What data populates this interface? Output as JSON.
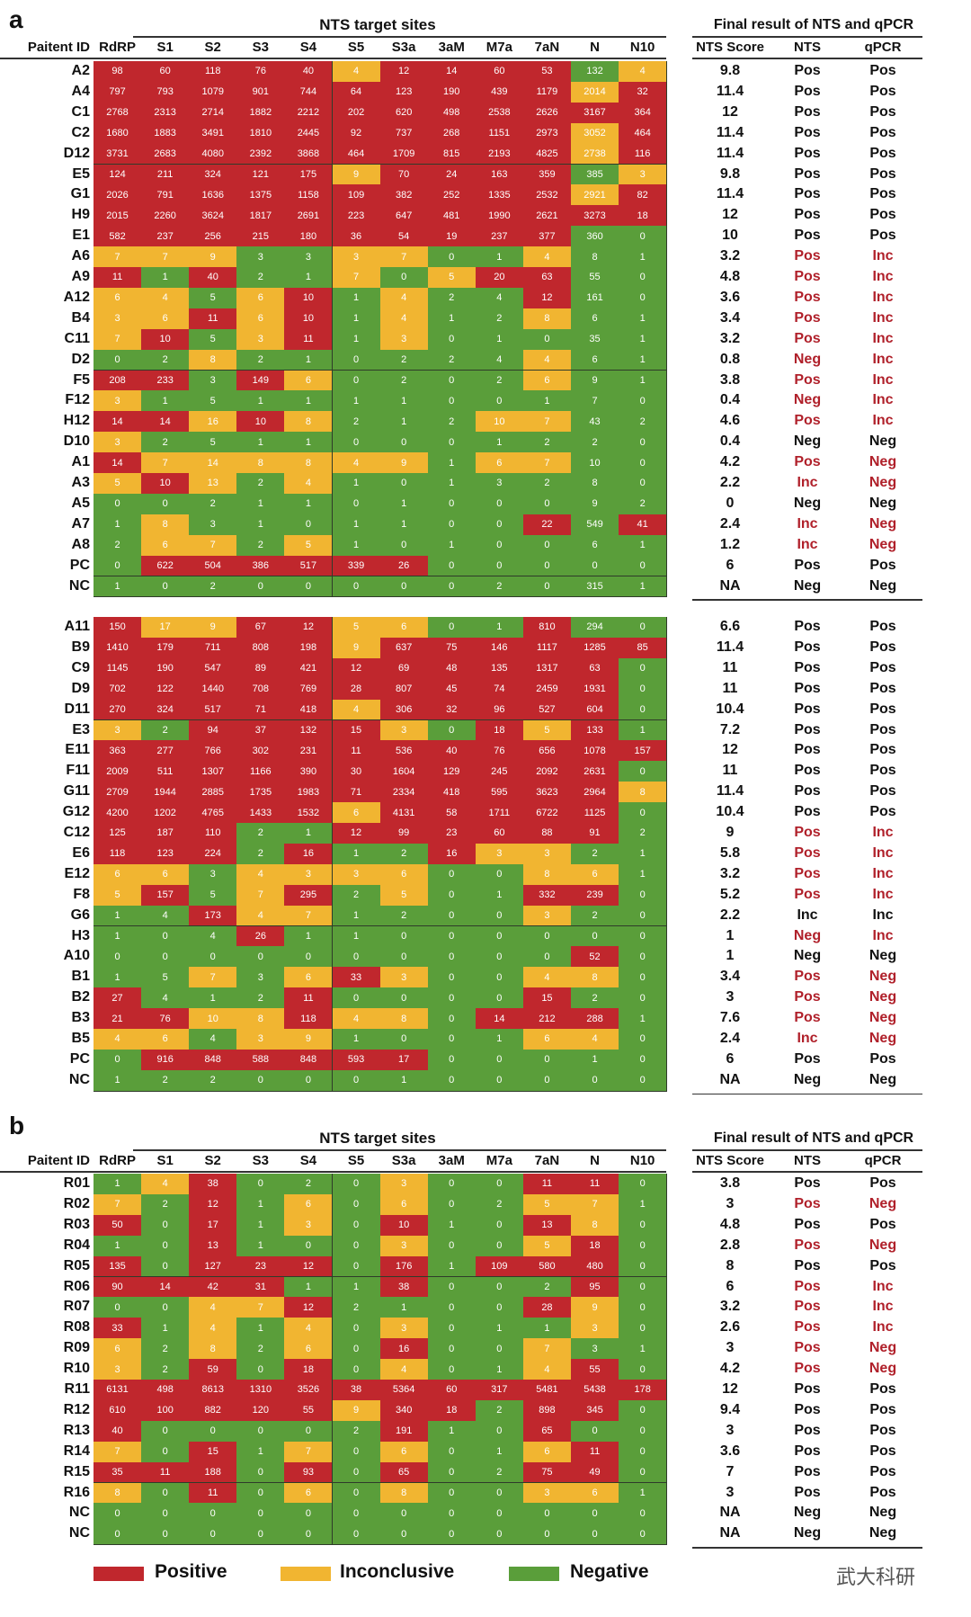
{
  "panel_a_label": "a",
  "panel_b_label": "b",
  "nts_title": "NTS target sites",
  "final_title": "Final result of NTS and qPCR",
  "col_id": "Paitent ID",
  "columns": [
    "RdRP",
    "S1",
    "S2",
    "S3",
    "S4",
    "S5",
    "S3a",
    "3aM",
    "M7a",
    "7aN",
    "N",
    "N10"
  ],
  "result_cols": [
    "NTS Score",
    "NTS",
    "qPCR"
  ],
  "colors": {
    "positive": "#c0272d",
    "inconclusive": "#f1b531",
    "negative": "#5a9e3a",
    "result_red": "#b0202a"
  },
  "legend": {
    "positive": "Positive",
    "inconclusive": "Inconclusive",
    "negative": "Negative"
  },
  "watermark": "武大科研",
  "block1": [
    [
      "A2",
      "98r 60r 118r 76r 40r 4y 12r 14r 60r 53r 132g 4y",
      "9.8",
      "Pos",
      "Pos"
    ],
    [
      "A4",
      "797r 793r 1079r 901r 744r 64r 123r 190r 439r 1179r 2014y 32r",
      "11.4",
      "Pos",
      "Pos"
    ],
    [
      "C1",
      "2768r 2313r 2714r 1882r 2212r 202r 620r 498r 2538r 2626r 3167r 364r",
      "12",
      "Pos",
      "Pos"
    ],
    [
      "C2",
      "1680r 1883r 3491r 1810r 2445r 92r 737r 268r 1151r 2973r 3052y 464r",
      "11.4",
      "Pos",
      "Pos"
    ],
    [
      "D12",
      "3731r 2683r 4080r 2392r 3868r 464r 1709r 815r 2193r 4825r 2738y 116r",
      "11.4",
      "Pos",
      "Pos"
    ],
    [
      "E5",
      "124r 211r 324r 121r 175r 9y 70r 24r 163r 359r 385g 3y",
      "9.8",
      "Pos",
      "Pos"
    ],
    [
      "G1",
      "2026r 791r 1636r 1375r 1158r 109r 382r 252r 1335r 2532r 2921y 82r",
      "11.4",
      "Pos",
      "Pos"
    ],
    [
      "H9",
      "2015r 2260r 3624r 1817r 2691r 223r 647r 481r 1990r 2621r 3273r 18r",
      "12",
      "Pos",
      "Pos"
    ],
    [
      "E1",
      "582r 237r 256r 215r 180r 36r 54r 19r 237r 377r 360g 0g",
      "10",
      "Pos",
      "Pos"
    ],
    [
      "A6",
      "7y 7y 9y 3g 3g 3y 7y 0g 1g 4y 8g 1g",
      "3.2",
      "Pos*",
      "Inc*"
    ],
    [
      "A9",
      "11r 1g 40r 2g 1g 7y 0g 5y 20r 63r 55g 0g",
      "4.8",
      "Pos*",
      "Inc*"
    ],
    [
      "A12",
      "6y 4y 5g 6y 10r 1g 4y 2g 4g 12r 161g 0g",
      "3.6",
      "Pos*",
      "Inc*"
    ],
    [
      "B4",
      "3y 6y 11r 6y 10r 1g 4y 1g 2g 8y 6g 1g",
      "3.4",
      "Pos*",
      "Inc*"
    ],
    [
      "C11",
      "7y 10r 5g 3y 11r 1g 3y 0g 1g 0g 35g 1g",
      "3.2",
      "Pos*",
      "Inc*"
    ],
    [
      "D2",
      "0g 2g 8y 2g 1g 0g 2g 2g 4g 4y 6g 1g",
      "0.8",
      "Neg*",
      "Inc*"
    ],
    [
      "F5",
      "208r 233r 3g 149r 6y 0g 2g 0g 2g 6y 9g 1g",
      "3.8",
      "Pos*",
      "Inc*"
    ],
    [
      "F12",
      "3y 1g 5g 1g 1g 1g 1g 0g 0g 1g 7g 0g",
      "0.4",
      "Neg*",
      "Inc*"
    ],
    [
      "H12",
      "14r 14r 16y 10r 8y 2g 1g 2g 10y 7y 43g 2g",
      "4.6",
      "Pos*",
      "Inc*"
    ],
    [
      "D10",
      "3y 2g 5g 1g 1g 0g 0g 0g 1g 2g 2g 0g",
      "0.4",
      "Neg",
      "Neg"
    ],
    [
      "A1",
      "14r 7y 14y 8y 8y 4y 9y 1g 6y 7y 10g 0g",
      "4.2",
      "Pos*",
      "Neg*"
    ],
    [
      "A3",
      "5y 10r 13y 2g 4y 1g 0g 1g 3g 2g 8g 0g",
      "2.2",
      "Inc*",
      "Neg*"
    ],
    [
      "A5",
      "0g 0g 2g 1g 1g 0g 1g 0g 0g 0g 9g 2g",
      "0",
      "Neg",
      "Neg"
    ],
    [
      "A7",
      "1g 8y 3g 1g 0g 1g 1g 0g 0g 22r 549g 41r",
      "2.4",
      "Inc*",
      "Neg*"
    ],
    [
      "A8",
      "2g 6y 7y 2g 5y 1g 0g 1g 0g 0g 6g 1g",
      "1.2",
      "Inc*",
      "Neg*"
    ],
    [
      "PC",
      "0g 622r 504r 386r 517r 339r 26r 0g 0g 0g 0g 0g",
      "6",
      "Pos",
      "Pos"
    ],
    [
      "NC",
      "1g 0g 2g 0g 0g 0g 0g 0g 2g 0g 315g 1g",
      "NA",
      "Neg",
      "Neg"
    ]
  ],
  "block2": [
    [
      "A11",
      "150r 17y 9y 67r 12r 5y 6y 0g 1g 810r 294g 0g",
      "6.6",
      "Pos",
      "Pos"
    ],
    [
      "B9",
      "1410r 179r 711r 808r 198r 9y 637r 75r 146r 1117r 1285r 85r",
      "11.4",
      "Pos",
      "Pos"
    ],
    [
      "C9",
      "1145r 190r 547r 89r 421r 12r 69r 48r 135r 1317r 63r 0g",
      "11",
      "Pos",
      "Pos"
    ],
    [
      "D9",
      "702r 122r 1440r 708r 769r 28r 807r 45r 74r 2459r 1931r 0g",
      "11",
      "Pos",
      "Pos"
    ],
    [
      "D11",
      "270r 324r 517r 71r 418r 4y 306r 32r 96r 527r 604r 0g",
      "10.4",
      "Pos",
      "Pos"
    ],
    [
      "E3",
      "3y 2g 94r 37r 132r 15r 3y 0g 18r 5y 133r 1g",
      "7.2",
      "Pos",
      "Pos"
    ],
    [
      "E11",
      "363r 277r 766r 302r 231r 11r 536r 40r 76r 656r 1078r 157r",
      "12",
      "Pos",
      "Pos"
    ],
    [
      "F11",
      "2009r 511r 1307r 1166r 390r 30r 1604r 129r 245r 2092r 2631r 0g",
      "11",
      "Pos",
      "Pos"
    ],
    [
      "G11",
      "2709r 1944r 2885r 1735r 1983r 71r 2334r 418r 595r 3623r 2964r 8y",
      "11.4",
      "Pos",
      "Pos"
    ],
    [
      "G12",
      "4200r 1202r 4765r 1433r 1532r 6y 4131r 58r 1711r 6722r 1125r 0g",
      "10.4",
      "Pos",
      "Pos"
    ],
    [
      "C12",
      "125r 187r 110r 2g 1g 12r 99r 23r 60r 88r 91r 2g",
      "9",
      "Pos*",
      "Inc*"
    ],
    [
      "E6",
      "118r 123r 224r 2g 16r 1g 2g 16r 3y 3y 2g 1g",
      "5.8",
      "Pos*",
      "Inc*"
    ],
    [
      "E12",
      "6y 6y 3g 4y 3y 3y 6y 0g 0g 8y 6y 1g",
      "3.2",
      "Pos*",
      "Inc*"
    ],
    [
      "F8",
      "5y 157r 5g 7y 295r 2g 5y 0g 1g 332r 239r 0g",
      "5.2",
      "Pos*",
      "Inc*"
    ],
    [
      "G6",
      "1g 4g 173r 4y 7y 1g 2g 0g 0g 3y 2g 0g",
      "2.2",
      "Inc",
      "Inc"
    ],
    [
      "H3",
      "1g 0g 4g 26r 1g 1g 0g 0g 0g 0g 0g 0g",
      "1",
      "Neg*",
      "Inc*"
    ],
    [
      "A10",
      "0g 0g 0g 0g 0g 0g 0g 0g 0g 0g 52r 0g",
      "1",
      "Neg",
      "Neg"
    ],
    [
      "B1",
      "1g 5g 7y 3g 6y 33r 3y 0g 0g 4y 8y 0g",
      "3.4",
      "Pos*",
      "Neg*"
    ],
    [
      "B2",
      "27r 4g 1g 2g 11r 0g 0g 0g 0g 15r 2g 0g",
      "3",
      "Pos*",
      "Neg*"
    ],
    [
      "B3",
      "21r 76r 10y 8y 118r 4y 8y 0g 14r 212r 288r 1g",
      "7.6",
      "Pos*",
      "Neg*"
    ],
    [
      "B5",
      "4y 6y 4g 3y 9y 1g 0g 0g 1g 6y 4y 0g",
      "2.4",
      "Inc*",
      "Neg*"
    ],
    [
      "PC",
      "0g 916r 848r 588r 848r 593r 17r 0g 0g 0g 1g 0g",
      "6",
      "Pos",
      "Pos"
    ],
    [
      "NC",
      "1g 2g 2g 0g 0g 0g 1g 0g 0g 0g 0g 0g",
      "NA",
      "Neg",
      "Neg"
    ]
  ],
  "block3": [
    [
      "R01",
      "1g 4y 38r 0g 2g 0g 3y 0g 0g 11r 11r 0g",
      "3.8",
      "Pos",
      "Pos"
    ],
    [
      "R02",
      "7y 2g 12r 1g 6y 0g 6y 0g 2g 5y 7y 1g",
      "3",
      "Pos*",
      "Neg*"
    ],
    [
      "R03",
      "50r 0g 17r 1g 3y 0g 10r 1g 0g 13r 8y 0g",
      "4.8",
      "Pos",
      "Pos"
    ],
    [
      "R04",
      "1g 0g 13r 1g 0g 0g 3y 0g 0g 5y 18r 0g",
      "2.8",
      "Pos*",
      "Neg*"
    ],
    [
      "R05",
      "135r 0g 127r 23r 12r 0g 176r 1g 109r 580r 480r 0g",
      "8",
      "Pos",
      "Pos"
    ],
    [
      "R06",
      "90r 14r 42r 31r 1g 1g 38r 0g 0g 2g 95r 0g",
      "6",
      "Pos*",
      "Inc*"
    ],
    [
      "R07",
      "0g 0g 4y 7y 12r 2g 1g 0g 0g 28r 9y 0g",
      "3.2",
      "Pos*",
      "Inc*"
    ],
    [
      "R08",
      "33r 1g 4y 1g 4y 0g 3y 0g 1g 1g 3y 0g",
      "2.6",
      "Pos*",
      "Inc*"
    ],
    [
      "R09",
      "6y 2g 8y 2g 6y 0g 16r 0g 0g 7y 3g 1g",
      "3",
      "Pos*",
      "Neg*"
    ],
    [
      "R10",
      "3y 2g 59r 0g 18r 0g 4y 0g 1g 4y 55r 0g",
      "4.2",
      "Pos*",
      "Neg*"
    ],
    [
      "R11",
      "6131r 498r 8613r 1310r 3526r 38r 5364r 60r 317r 5481r 5438r 178r",
      "12",
      "Pos",
      "Pos"
    ],
    [
      "R12",
      "610r 100r 882r 120r 55r 9y 340r 18r 2g 898r 345r 0g",
      "9.4",
      "Pos",
      "Pos"
    ],
    [
      "R13",
      "40r 0g 0g 0g 0g 2g 191r 1g 0g 65r 0g 0g",
      "3",
      "Pos",
      "Pos"
    ],
    [
      "R14",
      "7y 0g 15r 1g 7y 0g 6y 0g 1g 6y 11r 0g",
      "3.6",
      "Pos",
      "Pos"
    ],
    [
      "R15",
      "35r 11r 188r 0g 93r 0g 65r 0g 2g 75r 49r 0g",
      "7",
      "Pos",
      "Pos"
    ],
    [
      "R16",
      "8y 0g 11r 0g 6y 0g 8y 0g 0g 3y 6y 1g",
      "3",
      "Pos",
      "Pos"
    ],
    [
      "NC",
      "0g 0g 0g 0g 0g 0g 0g 0g 0g 0g 0g 0g",
      "NA",
      "Neg",
      "Neg"
    ],
    [
      "NC",
      "0g 0g 0g 0g 0g 0g 0g 0g 0g 0g 0g 0g",
      "NA",
      "Neg",
      "Neg"
    ]
  ]
}
